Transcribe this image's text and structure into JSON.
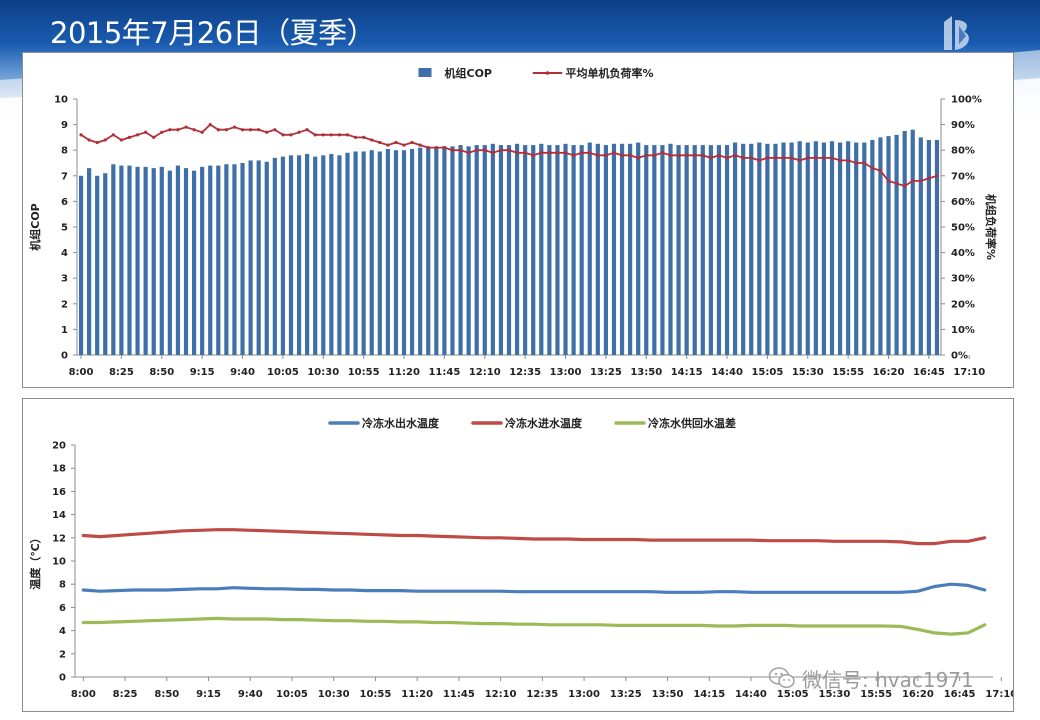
{
  "slide": {
    "title": "2015年7月26日（夏季）"
  },
  "watermark": {
    "text": "微信号: hvac1971",
    "icon": "wechat-icon"
  },
  "colors": {
    "bar": "#3f6fa8",
    "load_line": "#b0303a",
    "outlet": "#4a7ebb",
    "inlet": "#be4b48",
    "delta": "#9bbb59",
    "axis_text": "#222222"
  },
  "chart_data": [
    {
      "type": "bar+line",
      "title": "",
      "x_tick_labels": [
        "8:00",
        "8:25",
        "8:50",
        "9:15",
        "9:40",
        "10:05",
        "10:30",
        "10:55",
        "11:20",
        "11:45",
        "12:10",
        "12:35",
        "13:00",
        "13:25",
        "13:50",
        "14:15",
        "14:40",
        "15:05",
        "15:30",
        "15:55",
        "16:20",
        "16:45",
        "17:10"
      ],
      "x_start": "8:00",
      "x_step_minutes": 5,
      "ylabel": "机组COP",
      "ylim": [
        0,
        10
      ],
      "yticks": [
        0,
        1,
        2,
        3,
        4,
        5,
        6,
        7,
        8,
        9,
        10
      ],
      "y2label": "机组负荷率%",
      "y2lim": [
        0,
        100
      ],
      "y2ticks": [
        "0%",
        "10%",
        "20%",
        "30%",
        "40%",
        "50%",
        "60%",
        "70%",
        "80%",
        "90%",
        "100%"
      ],
      "legend_position": "top",
      "series": [
        {
          "name": "机组COP",
          "kind": "bar",
          "axis": "left",
          "values": [
            7.0,
            7.3,
            7.0,
            7.1,
            7.45,
            7.4,
            7.4,
            7.35,
            7.35,
            7.3,
            7.35,
            7.2,
            7.4,
            7.3,
            7.2,
            7.35,
            7.4,
            7.4,
            7.45,
            7.45,
            7.5,
            7.6,
            7.6,
            7.55,
            7.7,
            7.75,
            7.8,
            7.8,
            7.85,
            7.75,
            7.8,
            7.85,
            7.8,
            7.9,
            7.95,
            7.95,
            8.0,
            7.95,
            8.05,
            8.0,
            8.0,
            8.05,
            8.1,
            8.1,
            8.1,
            8.15,
            8.15,
            8.2,
            8.15,
            8.2,
            8.2,
            8.25,
            8.2,
            8.2,
            8.25,
            8.2,
            8.2,
            8.25,
            8.2,
            8.2,
            8.25,
            8.2,
            8.2,
            8.3,
            8.25,
            8.2,
            8.25,
            8.25,
            8.25,
            8.3,
            8.2,
            8.2,
            8.2,
            8.25,
            8.2,
            8.2,
            8.2,
            8.2,
            8.2,
            8.2,
            8.2,
            8.3,
            8.25,
            8.25,
            8.3,
            8.25,
            8.25,
            8.3,
            8.3,
            8.35,
            8.3,
            8.35,
            8.3,
            8.35,
            8.3,
            8.35,
            8.3,
            8.3,
            8.4,
            8.5,
            8.55,
            8.6,
            8.75,
            8.8,
            8.5,
            8.4,
            8.4
          ]
        },
        {
          "name": "平均单机负荷率%",
          "kind": "line",
          "axis": "right",
          "values": [
            86,
            84,
            83,
            84,
            86,
            84,
            85,
            86,
            87,
            85,
            87,
            88,
            88,
            89,
            88,
            87,
            90,
            88,
            88,
            89,
            88,
            88,
            88,
            87,
            88,
            86,
            86,
            87,
            88,
            86,
            86,
            86,
            86,
            86,
            85,
            85,
            84,
            83,
            82,
            83,
            82,
            83,
            82,
            81,
            81,
            81,
            80,
            80,
            79,
            80,
            80,
            79,
            80,
            80,
            79,
            79,
            78,
            79,
            79,
            79,
            79,
            78,
            79,
            79,
            78,
            78,
            79,
            78,
            78,
            77,
            78,
            78,
            79,
            78,
            78,
            78,
            78,
            78,
            77,
            78,
            77,
            78,
            77,
            77,
            76,
            77,
            77,
            77,
            77,
            76,
            77,
            77,
            77,
            77,
            76,
            76,
            75,
            75,
            73,
            72,
            68,
            67,
            66,
            68,
            68,
            69,
            70
          ]
        }
      ]
    },
    {
      "type": "line",
      "title": "",
      "x_tick_labels": [
        "8:00",
        "8:25",
        "8:50",
        "9:15",
        "9:40",
        "10:05",
        "10:30",
        "10:55",
        "11:20",
        "11:45",
        "12:10",
        "12:35",
        "13:00",
        "13:25",
        "13:50",
        "14:15",
        "14:40",
        "15:05",
        "15:30",
        "15:55",
        "16:20",
        "16:45",
        "17:10"
      ],
      "x_start": "8:00",
      "x_step_minutes": 5,
      "ylabel": "温度（℃）",
      "ylim": [
        0,
        20
      ],
      "yticks": [
        0,
        2,
        4,
        6,
        8,
        10,
        12,
        14,
        16,
        18,
        20
      ],
      "legend_position": "top",
      "series": [
        {
          "name": "冷冻水出水温度",
          "values": [
            7.5,
            7.4,
            7.45,
            7.5,
            7.5,
            7.5,
            7.55,
            7.6,
            7.6,
            7.7,
            7.65,
            7.6,
            7.6,
            7.55,
            7.55,
            7.5,
            7.5,
            7.45,
            7.45,
            7.45,
            7.4,
            7.4,
            7.4,
            7.4,
            7.4,
            7.4,
            7.35,
            7.35,
            7.35,
            7.35,
            7.35,
            7.35,
            7.35,
            7.35,
            7.35,
            7.3,
            7.3,
            7.3,
            7.35,
            7.35,
            7.3,
            7.3,
            7.3,
            7.3,
            7.3,
            7.3,
            7.3,
            7.3,
            7.3,
            7.3,
            7.4,
            7.8,
            8.0,
            7.9,
            7.5
          ]
        },
        {
          "name": "冷冻水进水温度",
          "values": [
            12.2,
            12.1,
            12.2,
            12.3,
            12.4,
            12.5,
            12.6,
            12.65,
            12.7,
            12.7,
            12.65,
            12.6,
            12.55,
            12.5,
            12.45,
            12.4,
            12.35,
            12.3,
            12.25,
            12.2,
            12.2,
            12.15,
            12.1,
            12.05,
            12.0,
            12.0,
            11.95,
            11.9,
            11.9,
            11.9,
            11.85,
            11.85,
            11.85,
            11.85,
            11.8,
            11.8,
            11.8,
            11.8,
            11.8,
            11.8,
            11.8,
            11.75,
            11.75,
            11.75,
            11.75,
            11.7,
            11.7,
            11.7,
            11.7,
            11.65,
            11.5,
            11.5,
            11.7,
            11.7,
            12.0
          ]
        },
        {
          "name": "冷冻水供回水温差",
          "values": [
            4.7,
            4.7,
            4.75,
            4.8,
            4.85,
            4.9,
            4.95,
            5.0,
            5.05,
            5.0,
            5.0,
            5.0,
            4.95,
            4.95,
            4.9,
            4.85,
            4.85,
            4.8,
            4.8,
            4.75,
            4.75,
            4.7,
            4.7,
            4.65,
            4.6,
            4.6,
            4.55,
            4.55,
            4.5,
            4.5,
            4.5,
            4.5,
            4.45,
            4.45,
            4.45,
            4.45,
            4.45,
            4.45,
            4.4,
            4.4,
            4.45,
            4.45,
            4.45,
            4.4,
            4.4,
            4.4,
            4.4,
            4.4,
            4.4,
            4.35,
            4.1,
            3.8,
            3.7,
            3.8,
            4.5
          ]
        }
      ]
    }
  ]
}
